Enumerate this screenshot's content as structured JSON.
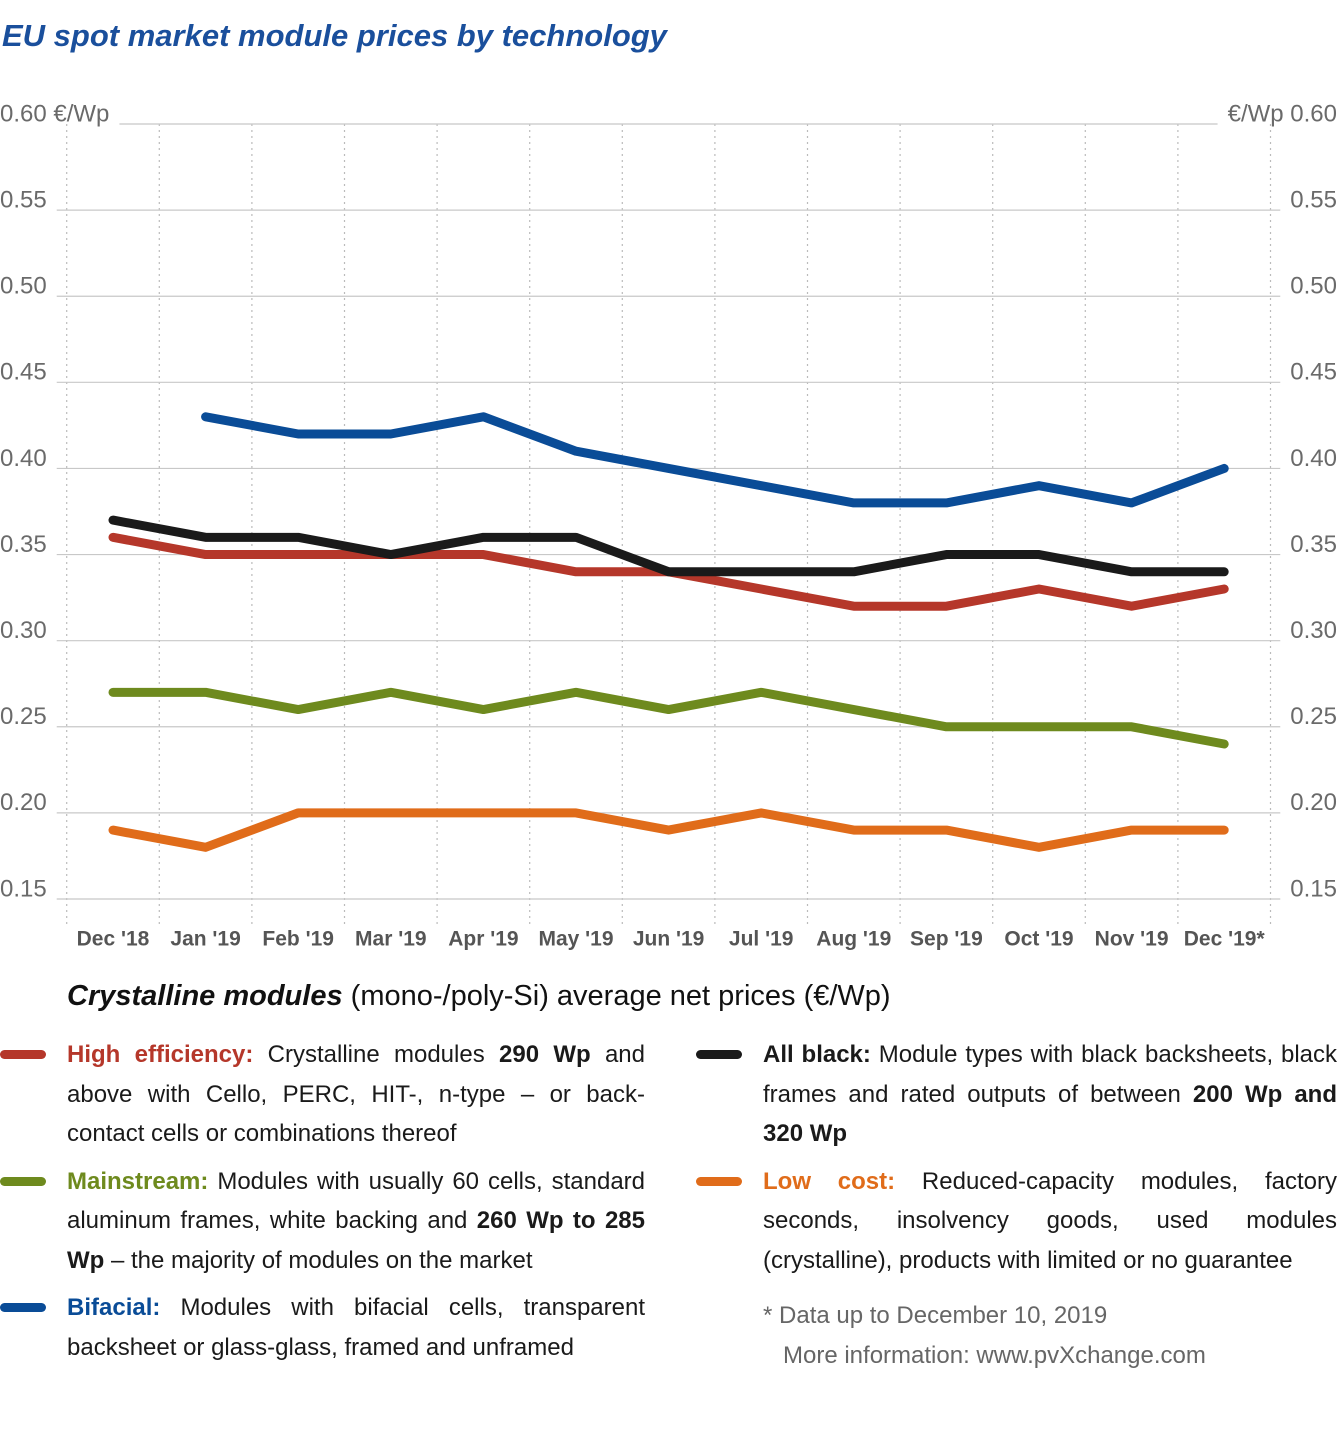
{
  "chart_data": {
    "type": "line",
    "title": "EU spot market module prices  by technology",
    "categories": [
      "Dec '18",
      "Jan '19",
      "Feb '19",
      "Mar '19",
      "Apr '19",
      "May '19",
      "Jun '19",
      "Jul '19",
      "Aug '19",
      "Sep '19",
      "Oct '19",
      "Nov '19",
      "Dec '19*"
    ],
    "ylim": [
      0.15,
      0.6
    ],
    "yticks": [
      0.15,
      {
        "value": 0.2,
        "label": "0.20"
      },
      0.25,
      {
        "value": 0.3,
        "label": "0.30"
      },
      0.35,
      {
        "value": 0.4,
        "label": "0.40"
      },
      0.45,
      {
        "value": 0.5,
        "label": "0.50"
      },
      0.55,
      {
        "value": 0.6,
        "label": "0.60 €/Wp"
      }
    ],
    "y2lim": [
      0.15,
      0.6
    ],
    "y2ticks": [
      0.15,
      {
        "value": 0.2,
        "label": "0.20"
      },
      0.25,
      {
        "value": 0.3,
        "label": "0.30"
      },
      0.35,
      {
        "value": 0.4,
        "label": "0.40"
      },
      0.45,
      {
        "value": 0.5,
        "label": "0.50"
      },
      0.55,
      {
        "value": 0.6,
        "label": "€/Wp 0.60"
      }
    ],
    "grid": true,
    "legend_title": "Crystalline modules",
    "legend_subtitle": "(mono-/poly-Si) average net prices (€/Wp)",
    "series": [
      {
        "name": "High efficiency:",
        "color": "#b5372a",
        "column": "left",
        "values": [
          0.36,
          0.35,
          0.35,
          0.35,
          0.35,
          0.34,
          0.34,
          0.33,
          0.32,
          0.32,
          0.33,
          0.32,
          0.33
        ],
        "description": [
          "Crystalline modules ",
          {
            "bold": "290 Wp"
          },
          " and above with Cello, PERC, HIT-, n-type – or back-contact cells or combinations thereof"
        ]
      },
      {
        "name": "Mainstream:",
        "color": "#6e8a1e",
        "column": "left",
        "values": [
          0.27,
          0.27,
          0.26,
          0.27,
          0.26,
          0.27,
          0.26,
          0.27,
          0.26,
          0.25,
          0.25,
          0.25,
          0.24
        ],
        "description": [
          "Modules with usually 60 cells, standard aluminum frames, white backing and ",
          {
            "bold": "260 Wp to 285 Wp"
          },
          " – the majority of modules on the market"
        ]
      },
      {
        "name": "Bifacial:",
        "color": "#0a4c97",
        "column": "left",
        "values": [
          null,
          0.43,
          0.42,
          0.42,
          0.43,
          0.41,
          0.4,
          0.39,
          0.38,
          0.38,
          0.39,
          0.38,
          0.4
        ],
        "description": [
          "Modules with bifacial cells, transparent backsheet or glass-glass, framed and unframed"
        ]
      },
      {
        "name": "All black:",
        "color": "#1a1a1a",
        "column": "right",
        "values": [
          0.37,
          0.36,
          0.36,
          0.35,
          0.36,
          0.36,
          0.34,
          0.34,
          0.34,
          0.35,
          0.35,
          0.34,
          0.34
        ],
        "description": [
          "Module types with black backsheets, black frames and rated outputs of between ",
          {
            "bold": "200 Wp and 320 Wp"
          }
        ]
      },
      {
        "name": "Low cost:",
        "color": "#e06c1a",
        "column": "right",
        "values": [
          0.19,
          0.18,
          0.2,
          0.2,
          0.2,
          0.2,
          0.19,
          0.2,
          0.19,
          0.19,
          0.18,
          0.19,
          0.19
        ],
        "description": [
          "Reduced-capacity modules, factory seconds, insolvency goods, used modules (crystalline), products with limited or no guarantee"
        ]
      }
    ],
    "footnotes": [
      "* Data up to December 10, 2019",
      "More information: www.pvXchange.com"
    ]
  }
}
